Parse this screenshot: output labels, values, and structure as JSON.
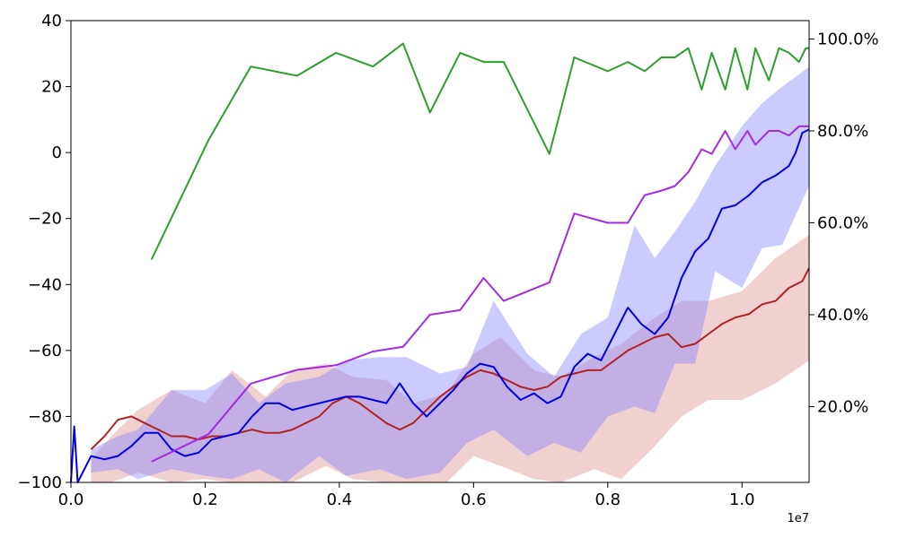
{
  "chart_data": {
    "type": "line",
    "xlabel": "",
    "ylabel": "",
    "y2label": "",
    "x_scale_label": "1e7",
    "xlim": [
      0,
      11000000
    ],
    "ylim": [
      -100,
      40
    ],
    "y2lim": [
      3.5,
      104
    ],
    "grid": false,
    "x_ticks": [
      {
        "value": 0,
        "label": "0.0"
      },
      {
        "value": 2000000,
        "label": "0.2"
      },
      {
        "value": 4000000,
        "label": "0.4"
      },
      {
        "value": 6000000,
        "label": "0.6"
      },
      {
        "value": 8000000,
        "label": "0.8"
      },
      {
        "value": 10000000,
        "label": "1.0"
      }
    ],
    "y_ticks": [
      {
        "value": -100,
        "label": "−100"
      },
      {
        "value": -80,
        "label": "−80"
      },
      {
        "value": -60,
        "label": "−60"
      },
      {
        "value": -40,
        "label": "−40"
      },
      {
        "value": -20,
        "label": "−20"
      },
      {
        "value": 0,
        "label": "0"
      },
      {
        "value": 20,
        "label": "20"
      },
      {
        "value": 40,
        "label": "40"
      }
    ],
    "y2_ticks": [
      {
        "value": 20,
        "label": "20.0%"
      },
      {
        "value": 40,
        "label": "40.0%"
      },
      {
        "value": 60,
        "label": "60.0%"
      },
      {
        "value": 80,
        "label": "80.0%"
      },
      {
        "value": 100,
        "label": "100.0%"
      }
    ],
    "bands": [
      {
        "color": "#dc8a8a",
        "opacity": 0.4,
        "x": [
          300000,
          600000,
          1000000,
          1500000,
          2000000,
          2400000,
          2900000,
          3300000,
          3800000,
          4200000,
          4700000,
          5100000,
          5600000,
          6000000,
          6400000,
          6900000,
          7300000,
          7800000,
          8200000,
          8700000,
          9100000,
          9500000,
          10000000,
          10500000,
          11000000
        ],
        "upper": [
          -93,
          -86,
          -78,
          -72,
          -76,
          -66,
          -74,
          -66,
          -64,
          -68,
          -69,
          -76,
          -73,
          -61,
          -56,
          -66,
          -68,
          -62,
          -58,
          -50,
          -45,
          -45,
          -42,
          -32,
          -25
        ],
        "lower": [
          -100,
          -100,
          -97,
          -100,
          -99,
          -100,
          -100,
          -100,
          -95,
          -99,
          -100,
          -100,
          -100,
          -92,
          -95,
          -99,
          -100,
          -96,
          -99,
          -89,
          -80,
          -75,
          -75,
          -70,
          -63
        ]
      },
      {
        "color": "#7c7cff",
        "opacity": 0.4,
        "x": [
          300000,
          700000,
          1000000,
          1500000,
          2000000,
          2400000,
          2800000,
          3200000,
          3700000,
          4100000,
          4600000,
          5000000,
          5500000,
          5900000,
          6300000,
          6800000,
          7200000,
          7600000,
          8000000,
          8400000,
          8700000,
          9000000,
          9300000,
          9600000,
          10000000,
          10300000,
          10600000,
          11000000
        ],
        "upper": [
          -90,
          -86,
          -84,
          -72,
          -72,
          -67,
          -76,
          -70,
          -68,
          -63,
          -62,
          -62,
          -67,
          -65,
          -45,
          -61,
          -68,
          -55,
          -50,
          -22,
          -32,
          -24,
          -15,
          -4,
          8,
          15,
          20,
          26
        ],
        "lower": [
          -97,
          -96,
          -99,
          -96,
          -98,
          -99,
          -96,
          -100,
          -92,
          -98,
          -96,
          -99,
          -97,
          -88,
          -84,
          -92,
          -88,
          -91,
          -80,
          -77,
          -79,
          -64,
          -64,
          -36,
          -41,
          -29,
          -28,
          -10
        ]
      }
    ],
    "series": [
      {
        "color": "#b22222",
        "axis": "left",
        "width": 2,
        "x": [
          300000,
          500000,
          700000,
          900000,
          1100000,
          1300000,
          1500000,
          1700000,
          1900000,
          2100000,
          2300000,
          2500000,
          2700000,
          2900000,
          3100000,
          3300000,
          3500000,
          3700000,
          3900000,
          4100000,
          4300000,
          4500000,
          4700000,
          4900000,
          5100000,
          5300000,
          5500000,
          5700000,
          5900000,
          6100000,
          6300000,
          6500000,
          6700000,
          6900000,
          7100000,
          7300000,
          7500000,
          7700000,
          7900000,
          8100000,
          8300000,
          8500000,
          8700000,
          8900000,
          9100000,
          9300000,
          9500000,
          9700000,
          9900000,
          10100000,
          10300000,
          10500000,
          10700000,
          10900000,
          11000000
        ],
        "y": [
          -90,
          -86,
          -81,
          -80,
          -82,
          -84,
          -86,
          -86,
          -87,
          -86,
          -86,
          -85,
          -84,
          -85,
          -85,
          -84,
          -82,
          -80,
          -76,
          -74,
          -76,
          -79,
          -82,
          -84,
          -82,
          -78,
          -74,
          -71,
          -68,
          -66,
          -67,
          -69,
          -71,
          -72,
          -71,
          -68,
          -67,
          -66,
          -66,
          -63,
          -60,
          -58,
          -56,
          -55,
          -59,
          -58,
          -55,
          -52,
          -50,
          -49,
          -46,
          -45,
          -41,
          -39,
          -35
        ]
      },
      {
        "color": "#0000e0",
        "axis": "left",
        "width": 2,
        "x": [
          0,
          50000,
          100000,
          300000,
          500000,
          700000,
          900000,
          1100000,
          1300000,
          1500000,
          1700000,
          1900000,
          2100000,
          2300000,
          2500000,
          2700000,
          2900000,
          3100000,
          3300000,
          3500000,
          3700000,
          3900000,
          4100000,
          4300000,
          4500000,
          4700000,
          4900000,
          5100000,
          5300000,
          5500000,
          5700000,
          5900000,
          6100000,
          6300000,
          6500000,
          6700000,
          6900000,
          7100000,
          7300000,
          7500000,
          7700000,
          7900000,
          8100000,
          8300000,
          8500000,
          8700000,
          8900000,
          9100000,
          9300000,
          9500000,
          9700000,
          9900000,
          10100000,
          10300000,
          10500000,
          10700000,
          10800000,
          10900000,
          11000000
        ],
        "y": [
          -100,
          -83,
          -100,
          -92,
          -93,
          -92,
          -89,
          -85,
          -85,
          -90,
          -92,
          -91,
          -87,
          -86,
          -85,
          -80,
          -76,
          -76,
          -78,
          -77,
          -76,
          -75,
          -74,
          -74,
          -75,
          -76,
          -70,
          -76,
          -80,
          -76,
          -72,
          -67,
          -64,
          -65,
          -71,
          -75,
          -73,
          -76,
          -74,
          -65,
          -61,
          -63,
          -55,
          -47,
          -52,
          -55,
          -50,
          -38,
          -30,
          -26,
          -17,
          -16,
          -13,
          -9,
          -7,
          -4,
          0,
          6,
          7
        ]
      },
      {
        "color": "#2ca02c",
        "axis": "right",
        "width": 2,
        "x": [
          1200000,
          2050000,
          2680000,
          3370000,
          3950000,
          4500000,
          4950000,
          5350000,
          5800000,
          6150000,
          6450000,
          7130000,
          7500000,
          8000000,
          8300000,
          8550000,
          8800000,
          9000000,
          9200000,
          9400000,
          9550000,
          9750000,
          9900000,
          10080000,
          10200000,
          10400000,
          10550000,
          10700000,
          10850000,
          10950000,
          11000000
        ],
        "y": [
          52,
          78,
          94,
          92,
          97,
          94,
          99,
          84,
          97,
          95,
          95,
          75,
          96,
          93,
          95,
          93,
          96,
          96,
          98,
          89,
          97,
          89,
          98,
          89,
          98,
          91,
          98,
          97,
          95,
          98,
          98
        ]
      },
      {
        "color": "#a52ae0",
        "axis": "right",
        "width": 2,
        "x": [
          1200000,
          2050000,
          2680000,
          3370000,
          3950000,
          4500000,
          4950000,
          5350000,
          5800000,
          6150000,
          6450000,
          7130000,
          7500000,
          8000000,
          8300000,
          8550000,
          8800000,
          9000000,
          9200000,
          9400000,
          9550000,
          9750000,
          9900000,
          10080000,
          10200000,
          10400000,
          10550000,
          10700000,
          10850000,
          10950000,
          11000000
        ],
        "y": [
          8,
          14,
          25,
          28,
          29,
          32,
          33,
          40,
          41,
          48,
          43,
          47,
          62,
          60,
          60,
          66,
          67,
          68,
          71,
          76,
          75,
          80,
          76,
          80,
          77,
          80,
          80,
          79,
          81,
          81,
          81
        ]
      }
    ]
  }
}
